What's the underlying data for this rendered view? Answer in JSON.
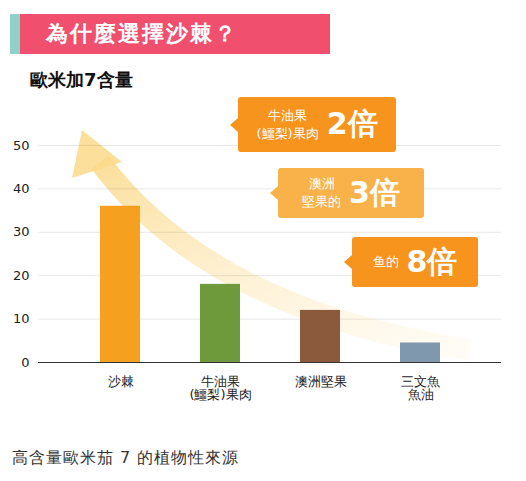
{
  "chart_data": {
    "type": "bar",
    "title": "為什麼選擇沙棘？",
    "subtitle": "歐米加7含量",
    "caption": "高含量歐米茄 7 的植物性來源",
    "categories": [
      "沙棘",
      "牛油果\n(鱷梨)果肉",
      "澳洲堅果",
      "三文魚\n魚油"
    ],
    "values": [
      36,
      18,
      12,
      4.5
    ],
    "colors": [
      "#f5a01e",
      "#6f9a3c",
      "#8b5a3c",
      "#7f98ad"
    ],
    "ylim": [
      0,
      50
    ],
    "yticks": [
      0,
      10,
      20,
      30,
      40,
      50
    ],
    "grid": true,
    "annotations": [
      {
        "text": "牛油果\n(鱷梨)果肉",
        "emphasis": "2倍"
      },
      {
        "text": "澳洲\n堅果的",
        "emphasis": "3倍"
      },
      {
        "text": "鱼的",
        "emphasis": "8倍"
      }
    ]
  }
}
